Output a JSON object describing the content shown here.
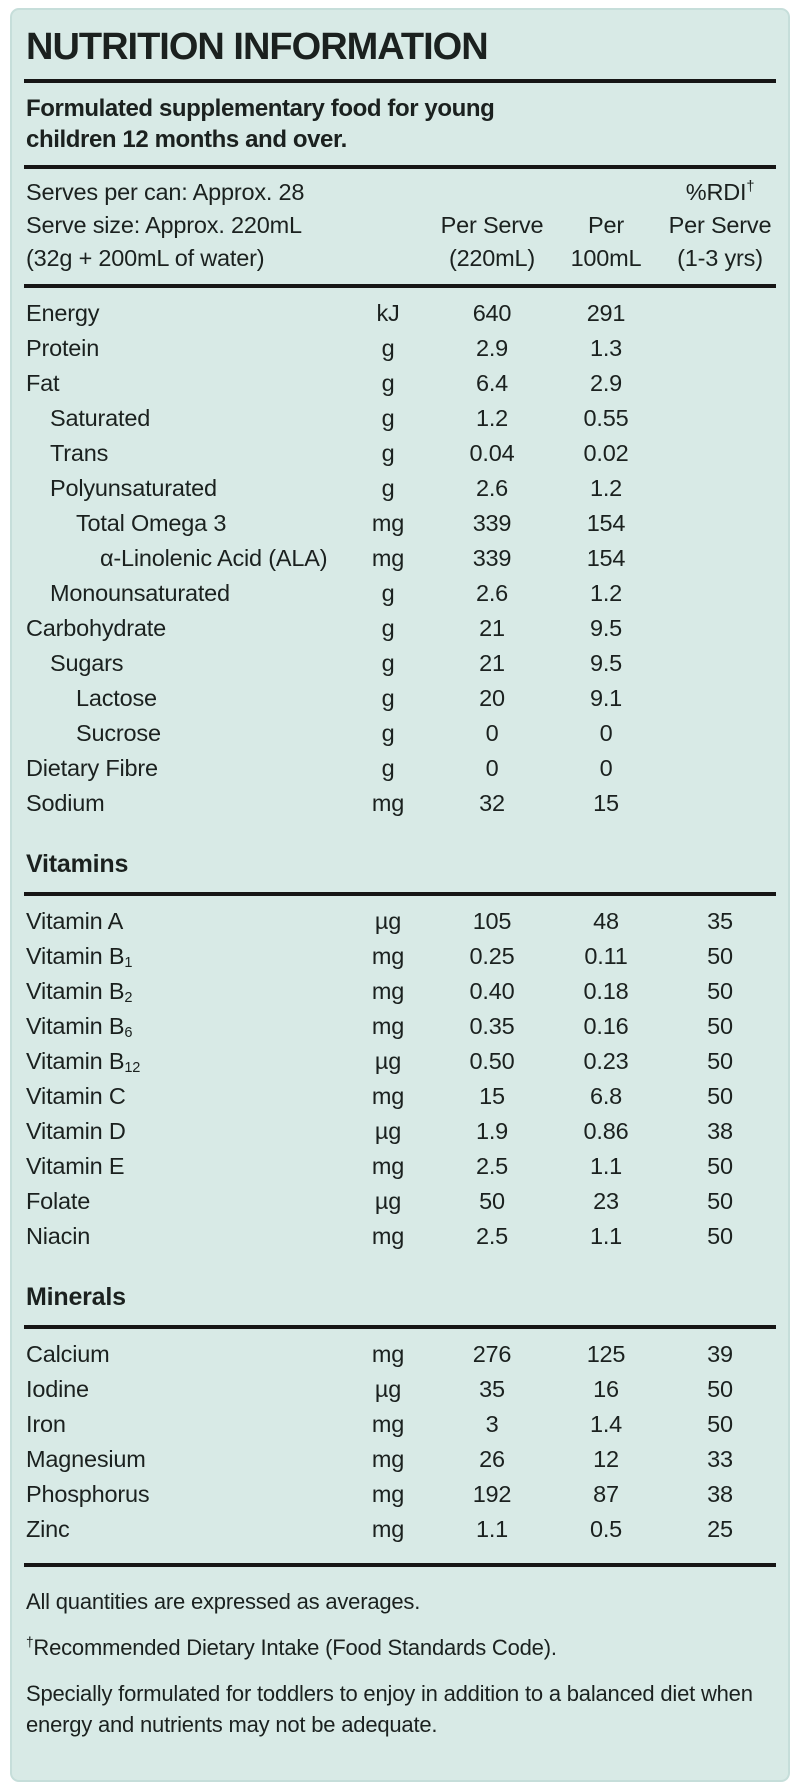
{
  "label": {
    "title": "NUTRITION INFORMATION",
    "subtitle": "Formulated supplementary food for young children 12 months and over.",
    "serving": {
      "serves_per_can": "Serves per can: Approx. 28",
      "serve_size": "Serve size: Approx. 220mL",
      "serve_size_note": "(32g + 200mL of water)"
    },
    "column_headers": {
      "rdi_top": "%RDI",
      "rdi_dagger": "†",
      "per_serve": [
        "Per Serve",
        "(220mL)"
      ],
      "per_100": [
        "Per",
        "100mL"
      ],
      "rdi": [
        "Per Serve",
        "(1-3 yrs)"
      ]
    },
    "sections": [
      {
        "heading": "",
        "rows": [
          {
            "name": "Energy",
            "indent": 0,
            "unit": "kJ",
            "per_serve": "640",
            "per_100": "291",
            "rdi": ""
          },
          {
            "name": "Protein",
            "indent": 0,
            "unit": "g",
            "per_serve": "2.9",
            "per_100": "1.3",
            "rdi": ""
          },
          {
            "name": "Fat",
            "indent": 0,
            "unit": "g",
            "per_serve": "6.4",
            "per_100": "2.9",
            "rdi": ""
          },
          {
            "name": "Saturated",
            "indent": 1,
            "unit": "g",
            "per_serve": "1.2",
            "per_100": "0.55",
            "rdi": ""
          },
          {
            "name": "Trans",
            "indent": 1,
            "unit": "g",
            "per_serve": "0.04",
            "per_100": "0.02",
            "rdi": ""
          },
          {
            "name": "Polyunsaturated",
            "indent": 1,
            "unit": "g",
            "per_serve": "2.6",
            "per_100": "1.2",
            "rdi": ""
          },
          {
            "name": "Total Omega 3",
            "indent": 2,
            "unit": "mg",
            "per_serve": "339",
            "per_100": "154",
            "rdi": ""
          },
          {
            "name": "α-Linolenic Acid (ALA)",
            "indent": 3,
            "unit": "mg",
            "per_serve": "339",
            "per_100": "154",
            "rdi": ""
          },
          {
            "name": "Monounsaturated",
            "indent": 1,
            "unit": "g",
            "per_serve": "2.6",
            "per_100": "1.2",
            "rdi": ""
          },
          {
            "name": "Carbohydrate",
            "indent": 0,
            "unit": "g",
            "per_serve": "21",
            "per_100": "9.5",
            "rdi": ""
          },
          {
            "name": "Sugars",
            "indent": 1,
            "unit": "g",
            "per_serve": "21",
            "per_100": "9.5",
            "rdi": ""
          },
          {
            "name": "Lactose",
            "indent": 2,
            "unit": "g",
            "per_serve": "20",
            "per_100": "9.1",
            "rdi": ""
          },
          {
            "name": "Sucrose",
            "indent": 2,
            "unit": "g",
            "per_serve": "0",
            "per_100": "0",
            "rdi": ""
          },
          {
            "name": "Dietary Fibre",
            "indent": 0,
            "unit": "g",
            "per_serve": "0",
            "per_100": "0",
            "rdi": ""
          },
          {
            "name": "Sodium",
            "indent": 0,
            "unit": "mg",
            "per_serve": "32",
            "per_100": "15",
            "rdi": ""
          }
        ]
      },
      {
        "heading": "Vitamins",
        "rows": [
          {
            "name": "Vitamin A",
            "indent": 0,
            "unit": "µg",
            "per_serve": "105",
            "per_100": "48",
            "rdi": "35"
          },
          {
            "name": "Vitamin B",
            "sub": "1",
            "indent": 0,
            "unit": "mg",
            "per_serve": "0.25",
            "per_100": "0.11",
            "rdi": "50"
          },
          {
            "name": "Vitamin B",
            "sub": "2",
            "indent": 0,
            "unit": "mg",
            "per_serve": "0.40",
            "per_100": "0.18",
            "rdi": "50"
          },
          {
            "name": "Vitamin B",
            "sub": "6",
            "indent": 0,
            "unit": "mg",
            "per_serve": "0.35",
            "per_100": "0.16",
            "rdi": "50"
          },
          {
            "name": "Vitamin B",
            "sub": "12",
            "indent": 0,
            "unit": "µg",
            "per_serve": "0.50",
            "per_100": "0.23",
            "rdi": "50"
          },
          {
            "name": "Vitamin C",
            "indent": 0,
            "unit": "mg",
            "per_serve": "15",
            "per_100": "6.8",
            "rdi": "50"
          },
          {
            "name": "Vitamin D",
            "indent": 0,
            "unit": "µg",
            "per_serve": "1.9",
            "per_100": "0.86",
            "rdi": "38"
          },
          {
            "name": "Vitamin E",
            "indent": 0,
            "unit": "mg",
            "per_serve": "2.5",
            "per_100": "1.1",
            "rdi": "50"
          },
          {
            "name": "Folate",
            "indent": 0,
            "unit": "µg",
            "per_serve": "50",
            "per_100": "23",
            "rdi": "50"
          },
          {
            "name": "Niacin",
            "indent": 0,
            "unit": "mg",
            "per_serve": "2.5",
            "per_100": "1.1",
            "rdi": "50"
          }
        ]
      },
      {
        "heading": "Minerals",
        "rows": [
          {
            "name": "Calcium",
            "indent": 0,
            "unit": "mg",
            "per_serve": "276",
            "per_100": "125",
            "rdi": "39"
          },
          {
            "name": "Iodine",
            "indent": 0,
            "unit": "µg",
            "per_serve": "35",
            "per_100": "16",
            "rdi": "50"
          },
          {
            "name": "Iron",
            "indent": 0,
            "unit": "mg",
            "per_serve": "3",
            "per_100": "1.4",
            "rdi": "50"
          },
          {
            "name": "Magnesium",
            "indent": 0,
            "unit": "mg",
            "per_serve": "26",
            "per_100": "12",
            "rdi": "33"
          },
          {
            "name": "Phosphorus",
            "indent": 0,
            "unit": "mg",
            "per_serve": "192",
            "per_100": "87",
            "rdi": "38"
          },
          {
            "name": "Zinc",
            "indent": 0,
            "unit": "mg",
            "per_serve": "1.1",
            "per_100": "0.5",
            "rdi": "25"
          }
        ]
      }
    ],
    "footnotes": [
      {
        "dagger": "",
        "text": "All quantities are expressed as averages."
      },
      {
        "dagger": "†",
        "text": "Recommended Dietary Intake (Food Standards Code)."
      },
      {
        "dagger": "",
        "text": "Specially formulated for toddlers to enjoy in addition to a balanced diet when energy and nutrients may not be adequate."
      }
    ],
    "colors": {
      "panel_background": "#d8eae6",
      "panel_border": "#c6deda",
      "text": "#1b211f",
      "rule": "#161616",
      "page_background": "#ffffff"
    }
  }
}
